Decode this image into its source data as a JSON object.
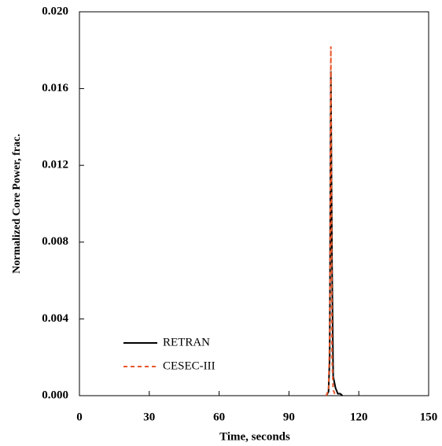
{
  "chart_data": {
    "type": "line",
    "xlabel": "Time, seconds",
    "ylabel": "Normalized Core Power, frac.",
    "xlim": [
      0,
      150
    ],
    "xticks": [
      0,
      30,
      60,
      90,
      120,
      150
    ],
    "ylim": [
      0,
      0.02
    ],
    "yticks": [
      {
        "value": 0,
        "label": "0.000"
      },
      {
        "value": 0.004,
        "label": "0.004"
      },
      {
        "value": 0.008,
        "label": "0.008"
      },
      {
        "value": 0.012,
        "label": "0.012"
      },
      {
        "value": 0.016,
        "label": "0.016"
      },
      {
        "value": 0.02,
        "label": "0.020"
      }
    ],
    "legend": "lower left",
    "series": [
      {
        "name": "RETRAN",
        "color": "#000000",
        "dash": false,
        "x": [
          106,
          107,
          107.5,
          108,
          108.5,
          109,
          110,
          111,
          112,
          113
        ],
        "values": [
          0,
          0.0002,
          0.002,
          0.0169,
          0.007,
          0.001,
          0.0004,
          0.0001,
          0.0001,
          0
        ]
      },
      {
        "name": "CESEC-III",
        "color": "#e8572a",
        "dash": true,
        "x": [
          106,
          107,
          107.5,
          108,
          108.5,
          109,
          110
        ],
        "values": [
          0,
          0.0003,
          0.003,
          0.0182,
          0.002,
          0.0003,
          0
        ]
      }
    ]
  }
}
